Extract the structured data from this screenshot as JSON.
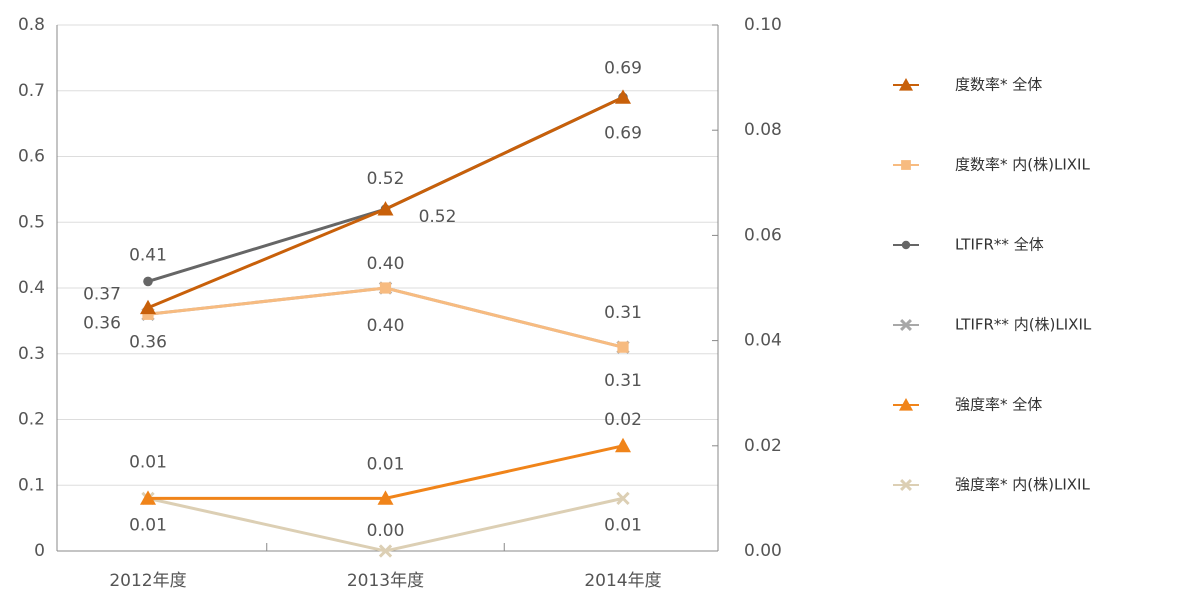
{
  "chart_data": {
    "type": "line",
    "categories": [
      "2012年度",
      "2013年度",
      "2014年度"
    ],
    "ylim": [
      0,
      0.8
    ],
    "yticks": [
      0,
      0.1,
      0.2,
      0.3,
      0.4,
      0.5,
      0.6,
      0.7,
      0.8
    ],
    "y2lim": [
      0,
      0.1
    ],
    "y2ticks": [
      {
        "value": 0,
        "label": "0.00"
      },
      {
        "value": 0.02,
        "label": "0.02"
      },
      {
        "value": 0.04,
        "label": "0.04"
      },
      {
        "value": 0.06,
        "label": "0.06"
      },
      {
        "value": 0.08,
        "label": "0.08"
      },
      {
        "value": 0.1,
        "label": "0.10"
      }
    ],
    "grid": true,
    "legend": "right",
    "series": [
      {
        "name": "度数率* 全体",
        "color": "#c8600a",
        "marker": "triangle",
        "values": [
          0.37,
          0.52,
          0.69
        ],
        "value_labels": [
          "0.37",
          "0.52",
          "0.69"
        ]
      },
      {
        "name": "度数率* 内(株)LIXIL",
        "color": "#f7bb80",
        "marker": "square",
        "values": [
          0.36,
          0.4,
          0.31
        ],
        "value_labels": [
          "0.36",
          "0.40",
          "0.31"
        ]
      },
      {
        "name": "LTIFR** 全体",
        "color": "#666666",
        "marker": "circle",
        "values": [
          0.41,
          0.52,
          0.69
        ],
        "value_labels": [
          "0.41",
          "0.52",
          "0.69"
        ]
      },
      {
        "name": "LTIFR** 内(株)LIXIL",
        "color": "#a8a8a8",
        "marker": "x",
        "values": [
          0.36,
          0.4,
          0.31
        ],
        "value_labels": [
          "0.36",
          "0.40",
          "0.31"
        ]
      },
      {
        "name": "強度率* 全体",
        "color": "#f0841a",
        "marker": "triangle",
        "axis": "y2",
        "values": [
          0.01,
          0.01,
          0.02
        ],
        "value_labels": [
          "0.01",
          "0.01",
          "0.02"
        ]
      },
      {
        "name": "強度率* 内(株)LIXIL",
        "color": "#dccfb4",
        "marker": "x",
        "axis": "y2",
        "values": [
          0.01,
          0,
          0.01
        ],
        "value_labels": [
          "0.01",
          "0.00",
          "0.01"
        ]
      }
    ]
  }
}
